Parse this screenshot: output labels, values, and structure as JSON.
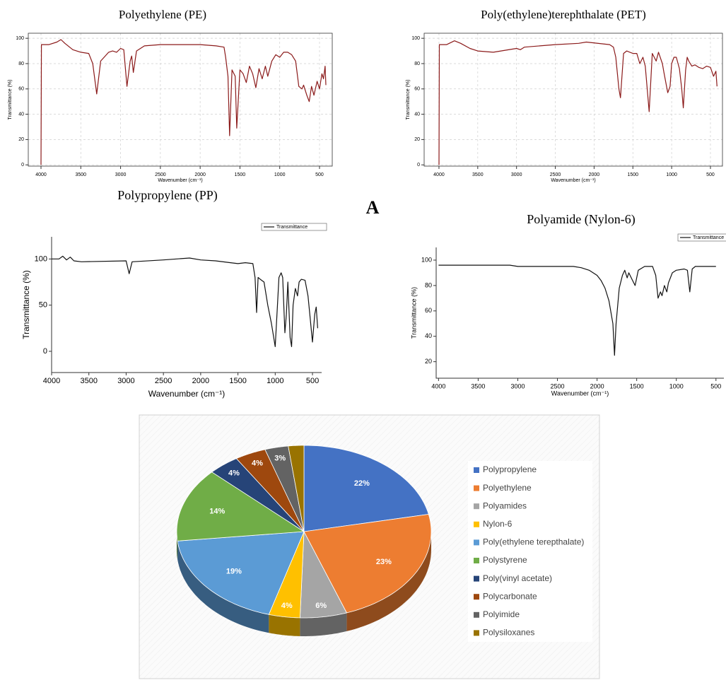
{
  "panel_label": "A",
  "chart_data": [
    {
      "type": "line",
      "title": "Polyethylene (PE)",
      "x_label": "Wavenumber (cm⁻¹)",
      "y_label": "Transmittance (%)",
      "x": [
        4000,
        3995,
        3900,
        3800,
        3750,
        3700,
        3600,
        3500,
        3400,
        3350,
        3300,
        3250,
        3150,
        3100,
        3050,
        3000,
        2960,
        2920,
        2880,
        2860,
        2840,
        2800,
        2700,
        2500,
        2000,
        1800,
        1700,
        1680,
        1650,
        1630,
        1600,
        1560,
        1540,
        1500,
        1460,
        1420,
        1380,
        1340,
        1300,
        1260,
        1220,
        1180,
        1150,
        1100,
        1050,
        1000,
        950,
        900,
        850,
        800,
        760,
        720,
        700,
        660,
        630,
        600,
        570,
        530,
        500,
        470,
        450,
        430,
        420
      ],
      "series": [
        {
          "color": "#8b1a1a",
          "values": [
            0,
            95,
            95,
            97,
            99,
            96,
            91,
            89,
            88,
            80,
            56,
            82,
            89,
            90,
            89,
            92,
            91,
            62,
            82,
            86,
            73,
            90,
            94,
            95,
            95,
            94,
            93,
            85,
            70,
            23,
            75,
            70,
            29,
            75,
            72,
            65,
            78,
            72,
            61,
            76,
            68,
            78,
            70,
            82,
            87,
            85,
            89,
            89,
            87,
            82,
            62,
            60,
            63,
            55,
            50,
            62,
            55,
            66,
            60,
            72,
            68,
            78,
            63
          ]
        }
      ],
      "xlim": [
        4160,
        340
      ],
      "ylim": [
        -1,
        104
      ],
      "xticks": [
        4000,
        3500,
        3000,
        2500,
        2000,
        1500,
        1000,
        500
      ],
      "yticks": [
        0,
        20,
        40,
        60,
        80,
        100
      ],
      "grid": true
    },
    {
      "type": "line",
      "title": "Poly(ethylene)terephthalate (PET)",
      "x_label": "Wavenumber (cm⁻¹)",
      "y_label": "Transmittance (%)",
      "x": [
        4000,
        3995,
        3900,
        3800,
        3720,
        3600,
        3500,
        3300,
        3000,
        2950,
        2900,
        2500,
        2200,
        2100,
        1800,
        1750,
        1720,
        1680,
        1660,
        1620,
        1580,
        1500,
        1450,
        1410,
        1370,
        1340,
        1290,
        1250,
        1200,
        1170,
        1120,
        1100,
        1050,
        1020,
        1000,
        970,
        940,
        900,
        870,
        850,
        820,
        800,
        780,
        740,
        700,
        650,
        600,
        550,
        500,
        460,
        430,
        415
      ],
      "series": [
        {
          "color": "#8b1a1a",
          "values": [
            0,
            95,
            95,
            98,
            96,
            92,
            90,
            89,
            92,
            91,
            93,
            95,
            96,
            97,
            95,
            93,
            85,
            60,
            53,
            88,
            90,
            88,
            88,
            80,
            85,
            78,
            42,
            88,
            82,
            89,
            80,
            73,
            57,
            62,
            80,
            85,
            85,
            76,
            60,
            45,
            75,
            85,
            82,
            78,
            79,
            77,
            76,
            78,
            77,
            70,
            74,
            62
          ]
        }
      ],
      "xlim": [
        4191,
        345
      ],
      "ylim": [
        -1,
        104
      ],
      "xticks": [
        4000,
        3500,
        3000,
        2500,
        2000,
        1500,
        1000,
        500
      ],
      "yticks": [
        0,
        20,
        40,
        60,
        80,
        100
      ],
      "grid": true
    },
    {
      "type": "line",
      "title": "Polypropylene (PP)",
      "x_label": "Wavenumber (cm⁻¹)",
      "y_label": "Transmittance (%)",
      "x": [
        4000,
        3900,
        3850,
        3800,
        3750,
        3700,
        3600,
        3000,
        2960,
        2920,
        2500,
        2150,
        2000,
        1800,
        1600,
        1500,
        1400,
        1300,
        1270,
        1250,
        1230,
        1200,
        1150,
        1100,
        1050,
        1000,
        970,
        950,
        920,
        900,
        870,
        850,
        830,
        800,
        780,
        760,
        730,
        700,
        680,
        650,
        600,
        560,
        530,
        500,
        470,
        450,
        430
      ],
      "series": [
        {
          "name": "Transmittance",
          "color": "#111111",
          "values": [
            100,
            100,
            103,
            99,
            102,
            98,
            97,
            98,
            84,
            97,
            99,
            101,
            99,
            98,
            96,
            95,
            96,
            95,
            80,
            42,
            80,
            78,
            75,
            50,
            30,
            5,
            50,
            80,
            85,
            80,
            20,
            40,
            75,
            15,
            5,
            50,
            68,
            60,
            75,
            78,
            77,
            60,
            35,
            10,
            40,
            48,
            25
          ]
        }
      ],
      "xlim": [
        4000,
        377
      ],
      "ylim": [
        -23,
        124
      ],
      "xticks": [
        4000,
        3500,
        3000,
        2500,
        2000,
        1500,
        1000,
        500
      ],
      "yticks": [
        0,
        50,
        100
      ],
      "grid": false,
      "legend": "upper right"
    },
    {
      "type": "line",
      "title": "Polyamide (Nylon-6)",
      "x_label": "Wavenumber (cm⁻¹)",
      "y_label": "Transmittance (%)",
      "x": [
        4000,
        3100,
        3000,
        2500,
        2300,
        2200,
        2100,
        2000,
        1950,
        1900,
        1850,
        1800,
        1780,
        1760,
        1720,
        1680,
        1650,
        1620,
        1600,
        1560,
        1520,
        1480,
        1400,
        1300,
        1260,
        1230,
        1200,
        1180,
        1150,
        1120,
        1100,
        1050,
        1000,
        900,
        860,
        830,
        800,
        760,
        500
      ],
      "series": [
        {
          "name": "Transmittance",
          "color": "#111111",
          "values": [
            96,
            96,
            95,
            95,
            95,
            94,
            92,
            88,
            84,
            78,
            68,
            50,
            25,
            50,
            78,
            88,
            92,
            86,
            90,
            85,
            80,
            92,
            95,
            95,
            88,
            70,
            75,
            72,
            80,
            75,
            82,
            90,
            92,
            93,
            92,
            75,
            93,
            95,
            95
          ]
        }
      ],
      "xlim": [
        4030,
        400
      ],
      "ylim": [
        7,
        110
      ],
      "xticks": [
        4000,
        3500,
        3000,
        2500,
        2000,
        1500,
        1000,
        500
      ],
      "yticks": [
        20,
        40,
        60,
        80,
        100
      ],
      "grid": false,
      "legend": "upper right"
    },
    {
      "type": "pie",
      "categories": [
        "Polypropylene",
        "Polyethylene",
        "Polyamides",
        "Nylon-6",
        "Poly(ethylene terepthalate)",
        "Polystyrene",
        "Poly(vinyl acetate)",
        "Polycarbonate",
        "Polyimide",
        "Polysiloxanes"
      ],
      "values": [
        22,
        23,
        6,
        4,
        19,
        14,
        4,
        4,
        3,
        2
      ],
      "value_labels": [
        "22%",
        "23%",
        "6%",
        "4%",
        "19%",
        "14%",
        "4%",
        "4%",
        "3%",
        null
      ],
      "colors": [
        "#4472c4",
        "#ed7d31",
        "#a5a5a5",
        "#ffc000",
        "#5b9bd5",
        "#70ad47",
        "#264478",
        "#9e480e",
        "#636363",
        "#997300"
      ],
      "legend": "right"
    }
  ]
}
